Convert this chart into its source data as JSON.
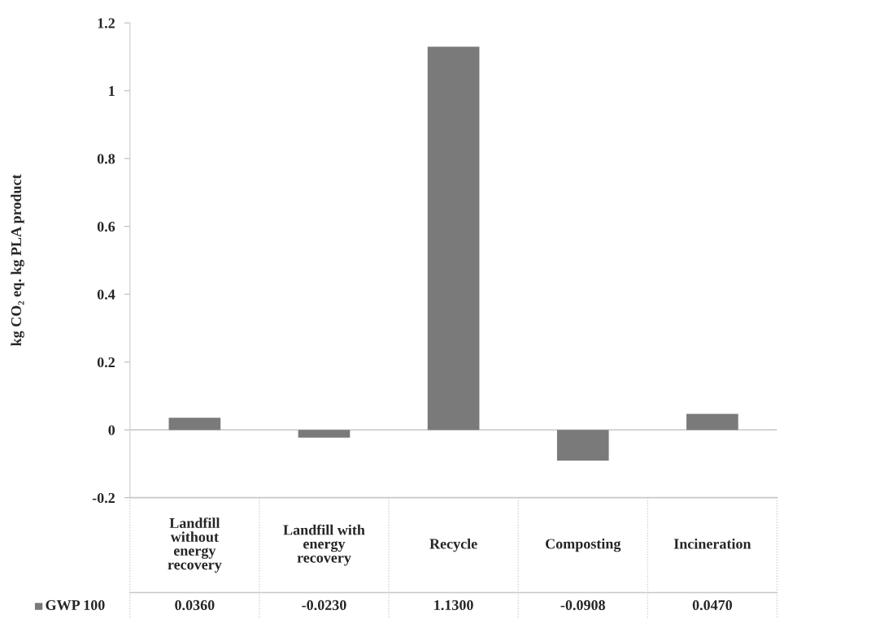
{
  "chart_data": {
    "type": "bar",
    "ylabel": "kg CO₂ eq. kg PLA product",
    "categories": [
      "Landfill without energy recovery",
      "Landfill with energy recovery",
      "Recycle",
      "Composting",
      "Incineration"
    ],
    "series": [
      {
        "name": "GWP 100",
        "color": "#7a7a7a",
        "values": [
          0.036,
          -0.023,
          1.13,
          -0.0908,
          0.047
        ],
        "value_labels": [
          "0.0360",
          "-0.0230",
          "1.1300",
          "-0.0908",
          "0.0470"
        ]
      }
    ],
    "ylim": [
      -0.2,
      1.2
    ],
    "yticks": [
      -0.2,
      0,
      0.2,
      0.4,
      0.6,
      0.8,
      1,
      1.2
    ],
    "ref_lines": [
      {
        "axis": "y",
        "value": 0,
        "color": "#bbbbbb"
      }
    ],
    "legend": "bottom"
  }
}
